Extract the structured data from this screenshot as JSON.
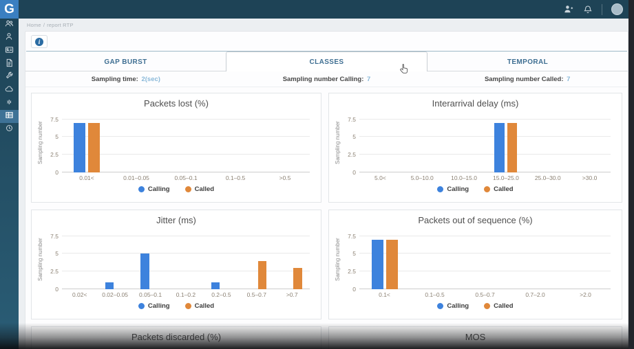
{
  "app": {
    "logo_letter": "G"
  },
  "breadcrumb": {
    "home": "Home",
    "separator": "/",
    "current": "report RTP"
  },
  "toolbar": {
    "info_glyph": "i"
  },
  "tabs": [
    {
      "label": "GAP BURST",
      "active": false
    },
    {
      "label": "CLASSES",
      "active": true
    },
    {
      "label": "TEMPORAL",
      "active": false
    }
  ],
  "sampling": {
    "time_label": "Sampling time:",
    "time_value": "2(sec)",
    "calling_label": "Sampling number Calling:",
    "calling_value": "7",
    "called_label": "Sampling number Called:",
    "called_value": "7"
  },
  "colors": {
    "calling": "#3d82dd",
    "called": "#e0883a",
    "sidebar": "#1e4356",
    "logo": "#3a7fc1",
    "value_text": "#8ab9d9"
  },
  "sidebar": {
    "items": [
      {
        "name": "user-group",
        "active": false
      },
      {
        "name": "user",
        "active": false
      },
      {
        "name": "id-card",
        "active": false
      },
      {
        "name": "document",
        "active": false
      },
      {
        "name": "wrench",
        "active": false
      },
      {
        "name": "cloud",
        "active": false
      },
      {
        "name": "gears",
        "active": false
      },
      {
        "name": "table",
        "active": true
      },
      {
        "name": "history",
        "active": false
      }
    ]
  },
  "chart_data": [
    {
      "type": "bar",
      "title": "Packets lost (%)",
      "ylabel": "Sampling number",
      "categories": [
        "0.01<",
        "0.01–0.05",
        "0.05–0.1",
        "0.1–0.5",
        ">0.5"
      ],
      "series": [
        {
          "name": "Calling",
          "color": "#3d82dd",
          "values": [
            7,
            0,
            0,
            0,
            0
          ]
        },
        {
          "name": "Called",
          "color": "#e0883a",
          "values": [
            7,
            0,
            0,
            0,
            0
          ]
        }
      ],
      "yticks": [
        0,
        2.5,
        5,
        7.5
      ],
      "ylim": [
        0,
        8.33
      ],
      "grid": true,
      "legend_position": "bottom"
    },
    {
      "type": "bar",
      "title": "Interarrival delay (ms)",
      "ylabel": "Sampling number",
      "categories": [
        "5.0<",
        "5.0–10.0",
        "10.0–15.0",
        "15.0–25.0",
        "25.0–30.0",
        ">30.0"
      ],
      "series": [
        {
          "name": "Calling",
          "color": "#3d82dd",
          "values": [
            0,
            0,
            0,
            7,
            0,
            0
          ]
        },
        {
          "name": "Called",
          "color": "#e0883a",
          "values": [
            0,
            0,
            0,
            7,
            0,
            0
          ]
        }
      ],
      "yticks": [
        0,
        2.5,
        5,
        7.5
      ],
      "ylim": [
        0,
        8.33
      ],
      "grid": true,
      "legend_position": "bottom"
    },
    {
      "type": "bar",
      "title": "Jitter (ms)",
      "ylabel": "Sampling number",
      "categories": [
        "0.02<",
        "0.02–0.05",
        "0.05–0.1",
        "0.1–0.2",
        "0.2–0.5",
        "0.5–0.7",
        ">0.7"
      ],
      "series": [
        {
          "name": "Calling",
          "color": "#3d82dd",
          "values": [
            0,
            1,
            5,
            0,
            1,
            0,
            0
          ]
        },
        {
          "name": "Called",
          "color": "#e0883a",
          "values": [
            0,
            0,
            0,
            0,
            0,
            4,
            3
          ]
        }
      ],
      "yticks": [
        0,
        2.5,
        5,
        7.5
      ],
      "ylim": [
        0,
        8.33
      ],
      "grid": true,
      "legend_position": "bottom"
    },
    {
      "type": "bar",
      "title": "Packets out of sequence (%)",
      "ylabel": "Sampling number",
      "categories": [
        "0.1<",
        "0.1–0.5",
        "0.5–0.7",
        "0.7–2.0",
        ">2.0"
      ],
      "series": [
        {
          "name": "Calling",
          "color": "#3d82dd",
          "values": [
            7,
            0,
            0,
            0,
            0
          ]
        },
        {
          "name": "Called",
          "color": "#e0883a",
          "values": [
            7,
            0,
            0,
            0,
            0
          ]
        }
      ],
      "yticks": [
        0,
        2.5,
        5,
        7.5
      ],
      "ylim": [
        0,
        8.33
      ],
      "grid": true,
      "legend_position": "bottom"
    }
  ],
  "partial_panels": [
    {
      "title": "Packets discarded (%)"
    },
    {
      "title": "MOS"
    }
  ]
}
